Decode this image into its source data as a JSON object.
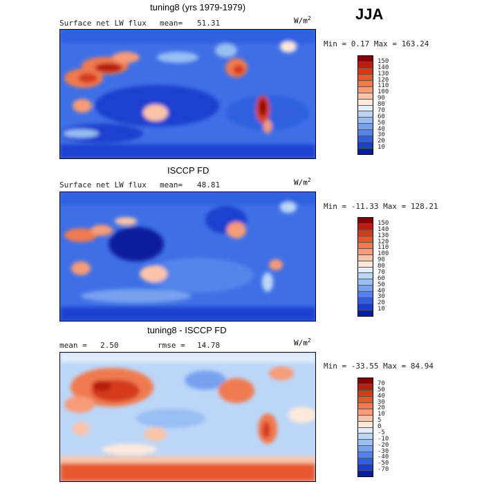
{
  "season": "JJA",
  "units": {
    "base": "W/m",
    "exp": "2"
  },
  "panels": [
    {
      "title": "tuning8 (yrs 1979-1979)",
      "left_label": "Surface net LW flux",
      "stat_label": "mean=",
      "stat_value": "51.31",
      "minmax": "Min =   0.17 Max = 163.24",
      "levels": [
        "150",
        "140",
        "130",
        "120",
        "110",
        "100",
        "90",
        "80",
        "70",
        "60",
        "50",
        "40",
        "30",
        "20",
        "10"
      ],
      "colors": [
        "#8b0000",
        "#b81d0f",
        "#d63a1c",
        "#e8582f",
        "#f07a4f",
        "#f79b78",
        "#fbc4a8",
        "#fde9db",
        "#e2eefc",
        "#bcd6f8",
        "#98bef4",
        "#76a2ef",
        "#5484ea",
        "#2f60e0",
        "#1a3fcf",
        "#0a1f9e"
      ]
    },
    {
      "title": "ISCCP FD",
      "left_label": "Surface net LW flux",
      "stat_label": "mean=",
      "stat_value": "48.81",
      "minmax": "Min = -11.33 Max = 128.21",
      "levels": [
        "150",
        "140",
        "130",
        "120",
        "110",
        "100",
        "90",
        "80",
        "70",
        "60",
        "50",
        "40",
        "30",
        "20",
        "10"
      ],
      "colors": [
        "#8b0000",
        "#b81d0f",
        "#d63a1c",
        "#e8582f",
        "#f07a4f",
        "#f79b78",
        "#fbc4a8",
        "#fde9db",
        "#e2eefc",
        "#bcd6f8",
        "#98bef4",
        "#76a2ef",
        "#5484ea",
        "#2f60e0",
        "#1a3fcf",
        "#0a1f9e"
      ]
    },
    {
      "title": "tuning8 - ISCCP FD",
      "left_label": "mean =",
      "left_value": "2.50",
      "stat_label": "rmse =",
      "stat_value": "14.78",
      "minmax": "Min = -33.55 Max =  84.94",
      "levels": [
        "70",
        "50",
        "40",
        "30",
        "20",
        "10",
        "5",
        "0",
        "-5",
        "-10",
        "-20",
        "-30",
        "-40",
        "-50",
        "-70"
      ],
      "colors": [
        "#8b0000",
        "#b81d0f",
        "#d63a1c",
        "#e8582f",
        "#f07a4f",
        "#f79b78",
        "#fbc4a8",
        "#fde9db",
        "#e2eefc",
        "#bcd6f8",
        "#98bef4",
        "#76a2ef",
        "#5484ea",
        "#2f60e0",
        "#1a3fcf",
        "#0a1f9e"
      ]
    }
  ],
  "chart_data": [
    {
      "type": "heatmap",
      "title": "tuning8 (yrs 1979-1979)",
      "subtitle": "Surface net LW flux",
      "mean": 51.31,
      "min": 0.17,
      "max": 163.24,
      "units": "W/m^2",
      "contour_levels": [
        10,
        20,
        30,
        40,
        50,
        60,
        70,
        80,
        90,
        100,
        110,
        120,
        130,
        140,
        150
      ]
    },
    {
      "type": "heatmap",
      "title": "ISCCP FD",
      "subtitle": "Surface net LW flux",
      "mean": 48.81,
      "min": -11.33,
      "max": 128.21,
      "units": "W/m^2",
      "contour_levels": [
        10,
        20,
        30,
        40,
        50,
        60,
        70,
        80,
        90,
        100,
        110,
        120,
        130,
        140,
        150
      ]
    },
    {
      "type": "heatmap",
      "title": "tuning8 - ISCCP FD",
      "mean": 2.5,
      "rmse": 14.78,
      "min": -33.55,
      "max": 84.94,
      "units": "W/m^2",
      "contour_levels": [
        -70,
        -50,
        -40,
        -30,
        -20,
        -10,
        -5,
        0,
        5,
        10,
        20,
        30,
        40,
        50,
        70
      ]
    }
  ]
}
